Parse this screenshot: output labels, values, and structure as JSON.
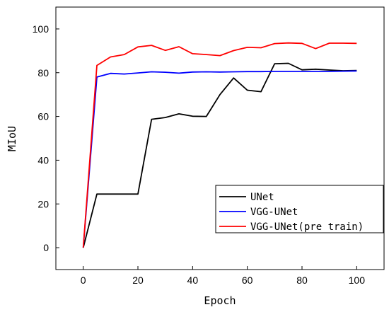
{
  "chart_data": {
    "type": "line",
    "xlabel": "Epoch",
    "ylabel": "MIoU",
    "xlim": [
      -10,
      110
    ],
    "ylim": [
      -10,
      110
    ],
    "xticks": [
      0,
      20,
      40,
      60,
      80,
      100
    ],
    "yticks": [
      0,
      20,
      40,
      60,
      80,
      100
    ],
    "xtick_labels": [
      "0",
      "20",
      "40",
      "60",
      "80",
      "100"
    ],
    "ytick_labels": [
      "0",
      "20",
      "40",
      "60",
      "80",
      "100"
    ],
    "grid": false,
    "legend_position": "bottom-right",
    "series": [
      {
        "name": "UNet",
        "color": "#000000",
        "x": [
          0,
          5,
          10,
          15,
          20,
          25,
          30,
          35,
          40,
          45,
          50,
          55,
          60,
          65,
          70,
          75,
          80,
          85,
          90,
          95,
          100
        ],
        "y": [
          0,
          24.5,
          24.5,
          24.5,
          24.5,
          58.7,
          59.5,
          61.2,
          60.1,
          60.0,
          70.0,
          77.6,
          72.0,
          71.3,
          84.1,
          84.3,
          81.3,
          81.6,
          81.2,
          80.9,
          81.0
        ]
      },
      {
        "name": "VGG-UNet",
        "color": "#0000ff",
        "x": [
          0,
          5,
          10,
          15,
          20,
          25,
          30,
          35,
          40,
          45,
          50,
          55,
          60,
          65,
          70,
          75,
          80,
          85,
          90,
          95,
          100
        ],
        "y": [
          0,
          78.0,
          79.7,
          79.4,
          79.9,
          80.4,
          80.2,
          79.8,
          80.3,
          80.4,
          80.3,
          80.4,
          80.5,
          80.5,
          80.6,
          80.6,
          80.6,
          80.6,
          80.6,
          80.7,
          80.8
        ]
      },
      {
        "name": "VGG-UNet(pre train)",
        "color": "#ff0000",
        "x": [
          0,
          5,
          10,
          15,
          20,
          25,
          30,
          35,
          40,
          45,
          50,
          55,
          60,
          65,
          70,
          75,
          80,
          85,
          90,
          95,
          100
        ],
        "y": [
          0,
          83.3,
          87.2,
          88.3,
          91.8,
          92.5,
          90.2,
          91.9,
          88.7,
          88.3,
          87.8,
          90.1,
          91.6,
          91.4,
          93.3,
          93.6,
          93.4,
          91.0,
          93.5,
          93.5,
          93.4
        ]
      }
    ]
  }
}
